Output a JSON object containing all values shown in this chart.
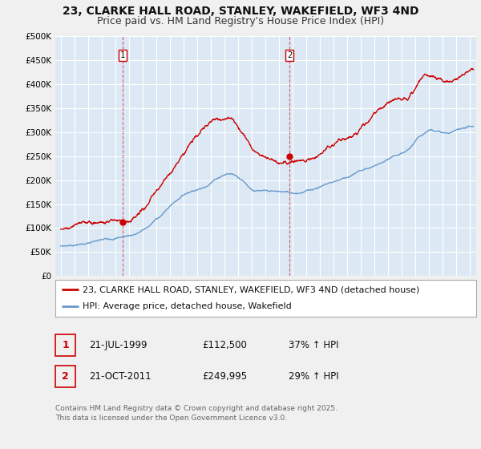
{
  "title": "23, CLARKE HALL ROAD, STANLEY, WAKEFIELD, WF3 4ND",
  "subtitle": "Price paid vs. HM Land Registry's House Price Index (HPI)",
  "legend_line1": "23, CLARKE HALL ROAD, STANLEY, WAKEFIELD, WF3 4ND (detached house)",
  "legend_line2": "HPI: Average price, detached house, Wakefield",
  "footnote": "Contains HM Land Registry data © Crown copyright and database right 2025.\nThis data is licensed under the Open Government Licence v3.0.",
  "sale1_label": "1",
  "sale1_date": "21-JUL-1999",
  "sale1_price": "£112,500",
  "sale1_hpi": "37% ↑ HPI",
  "sale2_label": "2",
  "sale2_date": "21-OCT-2011",
  "sale2_price": "£249,995",
  "sale2_hpi": "29% ↑ HPI",
  "sale1_x": 1999.55,
  "sale1_y": 112500,
  "sale2_x": 2011.8,
  "sale2_y": 249995,
  "vline1_x": 1999.55,
  "vline2_x": 2011.8,
  "ylim": [
    0,
    500000
  ],
  "xlim_start": 1994.6,
  "xlim_end": 2025.5,
  "red_color": "#cc0000",
  "blue_color": "#6699cc",
  "background_color": "#f0f0f0",
  "plot_bg_color": "#dce9f5",
  "grid_color": "#ffffff",
  "title_fontsize": 10,
  "subtitle_fontsize": 9,
  "tick_fontsize": 7.5,
  "legend_fontsize": 8,
  "annotation_fontsize": 8.5,
  "footnote_fontsize": 6.5,
  "hpi_x": [
    1995.0,
    1995.5,
    1996.0,
    1996.5,
    1997.0,
    1997.5,
    1998.0,
    1998.5,
    1999.0,
    1999.5,
    2000.0,
    2000.5,
    2001.0,
    2001.5,
    2002.0,
    2002.5,
    2003.0,
    2003.5,
    2004.0,
    2004.5,
    2005.0,
    2005.5,
    2006.0,
    2006.5,
    2007.0,
    2007.5,
    2008.0,
    2008.5,
    2009.0,
    2009.5,
    2010.0,
    2010.5,
    2011.0,
    2011.5,
    2012.0,
    2012.5,
    2013.0,
    2013.5,
    2014.0,
    2014.5,
    2015.0,
    2015.5,
    2016.0,
    2016.5,
    2017.0,
    2017.5,
    2018.0,
    2018.5,
    2019.0,
    2019.5,
    2020.0,
    2020.5,
    2021.0,
    2021.5,
    2022.0,
    2022.5,
    2023.0,
    2023.5,
    2024.0,
    2024.5,
    2025.0
  ],
  "hpi_y": [
    63000,
    64000,
    66000,
    68000,
    70000,
    72000,
    74000,
    76000,
    79000,
    82000,
    85000,
    89000,
    96000,
    105000,
    118000,
    130000,
    145000,
    158000,
    170000,
    178000,
    184000,
    188000,
    200000,
    210000,
    218000,
    220000,
    215000,
    205000,
    192000,
    188000,
    185000,
    183000,
    181000,
    180000,
    178000,
    180000,
    184000,
    188000,
    194000,
    200000,
    205000,
    210000,
    216000,
    221000,
    228000,
    233000,
    238000,
    243000,
    248000,
    253000,
    255000,
    262000,
    278000,
    292000,
    303000,
    305000,
    300000,
    298000,
    302000,
    308000,
    312000
  ],
  "red_x": [
    1995.0,
    1995.5,
    1996.0,
    1996.5,
    1997.0,
    1997.5,
    1998.0,
    1998.5,
    1999.0,
    1999.5,
    2000.0,
    2000.5,
    2001.0,
    2001.5,
    2002.0,
    2002.5,
    2003.0,
    2003.5,
    2004.0,
    2004.5,
    2005.0,
    2005.5,
    2006.0,
    2006.5,
    2007.0,
    2007.5,
    2008.0,
    2008.5,
    2009.0,
    2009.5,
    2010.0,
    2010.5,
    2011.0,
    2011.5,
    2012.0,
    2012.5,
    2013.0,
    2013.5,
    2014.0,
    2014.5,
    2015.0,
    2015.5,
    2016.0,
    2016.5,
    2017.0,
    2017.5,
    2018.0,
    2018.5,
    2019.0,
    2019.5,
    2020.0,
    2020.5,
    2021.0,
    2021.5,
    2022.0,
    2022.5,
    2023.0,
    2023.5,
    2024.0,
    2024.5,
    2025.0
  ],
  "red_y": [
    98000,
    99000,
    100000,
    101000,
    102000,
    103000,
    104000,
    106000,
    108000,
    112000,
    115000,
    120000,
    130000,
    145000,
    160000,
    178000,
    200000,
    225000,
    248000,
    268000,
    282000,
    295000,
    308000,
    318000,
    322000,
    318000,
    305000,
    290000,
    272000,
    262000,
    256000,
    252000,
    250000,
    249000,
    248000,
    250000,
    256000,
    263000,
    272000,
    282000,
    292000,
    302000,
    312000,
    322000,
    335000,
    348000,
    360000,
    370000,
    378000,
    385000,
    388000,
    395000,
    410000,
    425000,
    432000,
    428000,
    420000,
    415000,
    418000,
    425000,
    430000
  ]
}
